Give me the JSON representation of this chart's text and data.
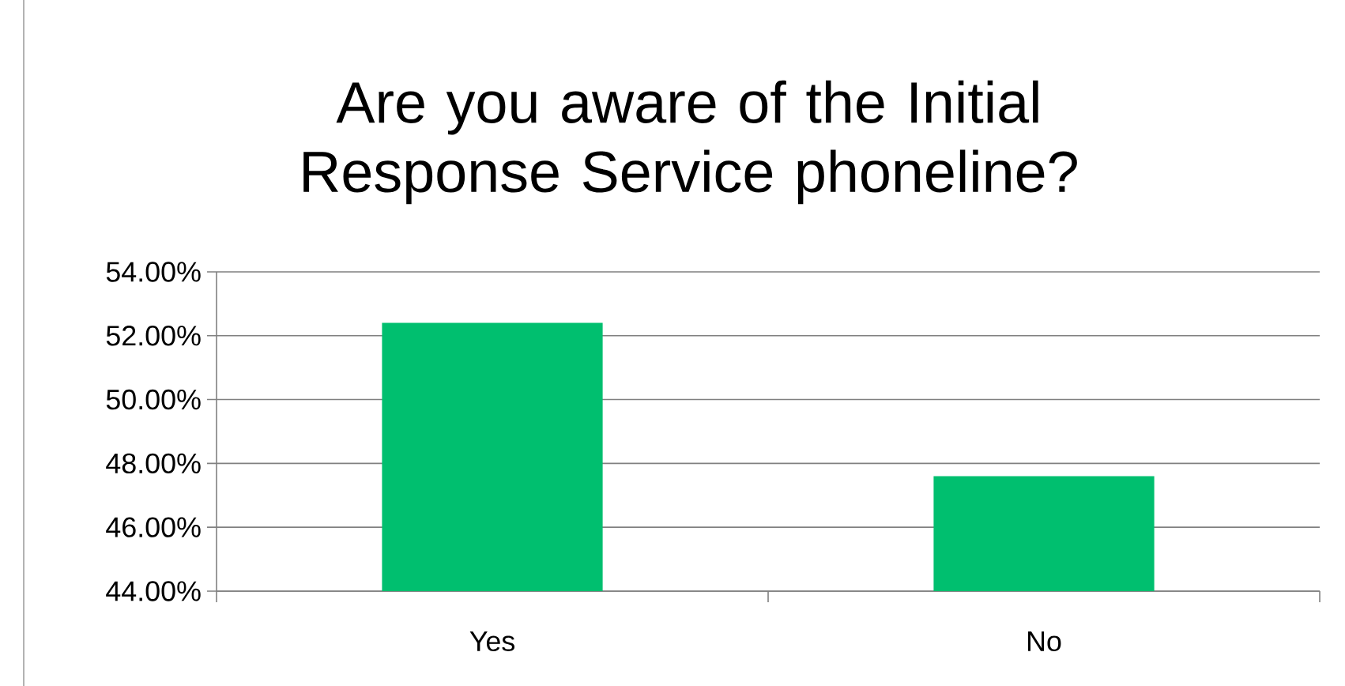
{
  "chart_data": {
    "type": "bar",
    "title": "Are you aware of the Initial Response Service phoneline?",
    "categories": [
      "Yes",
      "No"
    ],
    "values": [
      52.4,
      47.6
    ],
    "color": "#00bf6f",
    "ylim": [
      44,
      54
    ],
    "yticks": [
      {
        "value": 44,
        "label": "44.00%"
      },
      {
        "value": 46,
        "label": "46.00%"
      },
      {
        "value": 48,
        "label": "48.00%"
      },
      {
        "value": 50,
        "label": "50.00%"
      },
      {
        "value": 52,
        "label": "52.00%"
      },
      {
        "value": 54,
        "label": "54.00%"
      }
    ],
    "grid": "y"
  }
}
